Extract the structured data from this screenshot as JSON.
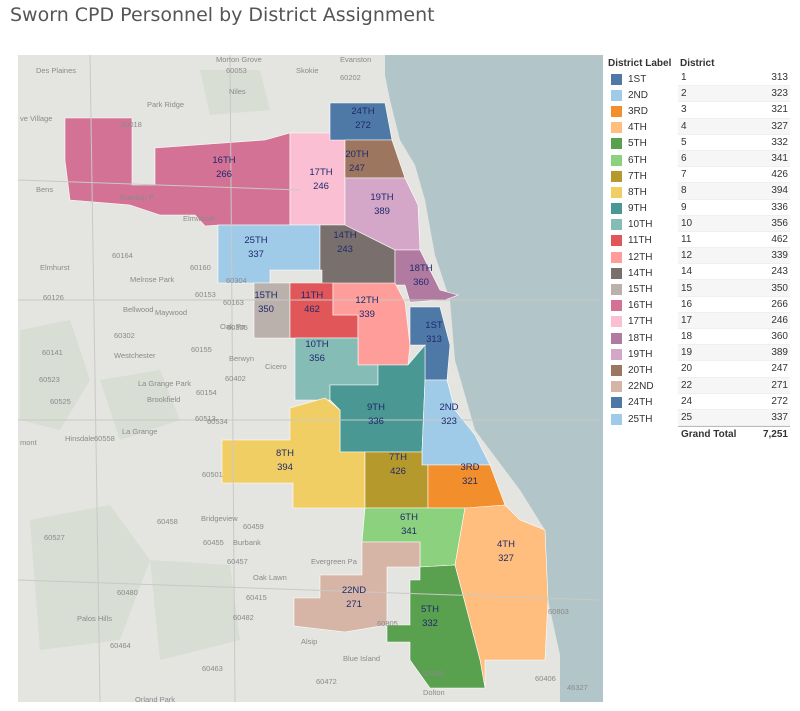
{
  "title": "Sworn CPD Personnel by District Assignment",
  "legend": {
    "title": "District Label",
    "items": [
      {
        "label": "1ST",
        "color": "#4e79a7"
      },
      {
        "label": "2ND",
        "color": "#a0cbe8"
      },
      {
        "label": "3RD",
        "color": "#f28e2b"
      },
      {
        "label": "4TH",
        "color": "#ffbe7d"
      },
      {
        "label": "5TH",
        "color": "#59a14f"
      },
      {
        "label": "6TH",
        "color": "#8cd17d"
      },
      {
        "label": "7TH",
        "color": "#b6992d"
      },
      {
        "label": "8TH",
        "color": "#f1ce63"
      },
      {
        "label": "9TH",
        "color": "#499894"
      },
      {
        "label": "10TH",
        "color": "#86bcb6"
      },
      {
        "label": "11TH",
        "color": "#e15759"
      },
      {
        "label": "12TH",
        "color": "#ff9d9a"
      },
      {
        "label": "14TH",
        "color": "#79706e"
      },
      {
        "label": "15TH",
        "color": "#bab0ac"
      },
      {
        "label": "16TH",
        "color": "#d37295"
      },
      {
        "label": "17TH",
        "color": "#fabfd2"
      },
      {
        "label": "18TH",
        "color": "#b07aa1"
      },
      {
        "label": "19TH",
        "color": "#d4a6c8"
      },
      {
        "label": "20TH",
        "color": "#9d7660"
      },
      {
        "label": "22ND",
        "color": "#d7b5a6"
      },
      {
        "label": "24TH",
        "color": "#4e79a7"
      },
      {
        "label": "25TH",
        "color": "#a0cbe8"
      }
    ]
  },
  "table": {
    "header": "District",
    "rows": [
      {
        "district": "1",
        "value": "313"
      },
      {
        "district": "2",
        "value": "323"
      },
      {
        "district": "3",
        "value": "321"
      },
      {
        "district": "4",
        "value": "327"
      },
      {
        "district": "5",
        "value": "332"
      },
      {
        "district": "6",
        "value": "341"
      },
      {
        "district": "7",
        "value": "426"
      },
      {
        "district": "8",
        "value": "394"
      },
      {
        "district": "9",
        "value": "336"
      },
      {
        "district": "10",
        "value": "356"
      },
      {
        "district": "11",
        "value": "462"
      },
      {
        "district": "12",
        "value": "339"
      },
      {
        "district": "14",
        "value": "243"
      },
      {
        "district": "15",
        "value": "350"
      },
      {
        "district": "16",
        "value": "266"
      },
      {
        "district": "17",
        "value": "246"
      },
      {
        "district": "18",
        "value": "360"
      },
      {
        "district": "19",
        "value": "389"
      },
      {
        "district": "20",
        "value": "247"
      },
      {
        "district": "22",
        "value": "271"
      },
      {
        "district": "24",
        "value": "272"
      },
      {
        "district": "25",
        "value": "337"
      }
    ],
    "total_label": "Grand Total",
    "total_value": "7,251"
  },
  "map": {
    "lake_color": "#b2c5c8",
    "land_color": "#e4e4e0",
    "districts": [
      {
        "label": "1ST",
        "value": "313",
        "color": "#4e79a7"
      },
      {
        "label": "2ND",
        "value": "323",
        "color": "#a0cbe8"
      },
      {
        "label": "3RD",
        "value": "321",
        "color": "#f28e2b"
      },
      {
        "label": "4TH",
        "value": "327",
        "color": "#ffbe7d"
      },
      {
        "label": "5TH",
        "value": "332",
        "color": "#59a14f"
      },
      {
        "label": "6TH",
        "value": "341",
        "color": "#8cd17d"
      },
      {
        "label": "7TH",
        "value": "426",
        "color": "#b6992d"
      },
      {
        "label": "8TH",
        "value": "394",
        "color": "#f1ce63"
      },
      {
        "label": "9TH",
        "value": "336",
        "color": "#499894"
      },
      {
        "label": "10TH",
        "value": "356",
        "color": "#86bcb6"
      },
      {
        "label": "11TH",
        "value": "462",
        "color": "#e15759"
      },
      {
        "label": "12TH",
        "value": "339",
        "color": "#ff9d9a"
      },
      {
        "label": "14TH",
        "value": "243",
        "color": "#79706e"
      },
      {
        "label": "15TH",
        "value": "350",
        "color": "#bab0ac"
      },
      {
        "label": "16TH",
        "value": "266",
        "color": "#d37295"
      },
      {
        "label": "17TH",
        "value": "246",
        "color": "#fabfd2"
      },
      {
        "label": "18TH",
        "value": "360",
        "color": "#b07aa1"
      },
      {
        "label": "19TH",
        "value": "389",
        "color": "#d4a6c8"
      },
      {
        "label": "20TH",
        "value": "247",
        "color": "#9d7660"
      },
      {
        "label": "22ND",
        "value": "271",
        "color": "#d7b5a6"
      },
      {
        "label": "24TH",
        "value": "272",
        "color": "#4e79a7"
      },
      {
        "label": "25TH",
        "value": "337",
        "color": "#a0cbe8"
      }
    ],
    "place_labels": [
      "Morton Grove",
      "60053",
      "Skokie",
      "Evanston",
      "60202",
      "Des Plaines",
      "Niles",
      "Park Ridge",
      "60018",
      "ve Village",
      "Bens",
      "Franklin P",
      "Elmwood",
      "60164",
      "Elmhurst",
      "60126",
      "Melrose Park",
      "60160",
      "Bellwood",
      "Maywood",
      "60153",
      "60163",
      "60305",
      "Oak Pa",
      "60304",
      "60302",
      "60155",
      "60141",
      "Westchester",
      "Berwyn",
      "Cicero",
      "60402",
      "60154",
      "60523",
      "La Grange Park",
      "Brookfield",
      "60525",
      "La Grange",
      "60513",
      "60534",
      "Hinsdale",
      "60558",
      "mont",
      "60501",
      "Bridgeview",
      "60458",
      "60459",
      "60455",
      "Burbank",
      "60527",
      "60457",
      "Oak Lawn",
      "Evergreen Pa",
      "60480",
      "60415",
      "Palos Hills",
      "60482",
      "60464",
      "60463",
      "Alsip",
      "60805",
      "60803",
      "Blue Island",
      "60472",
      "Dolton",
      "60409",
      "Orland Park",
      "46327",
      "60406"
    ]
  }
}
